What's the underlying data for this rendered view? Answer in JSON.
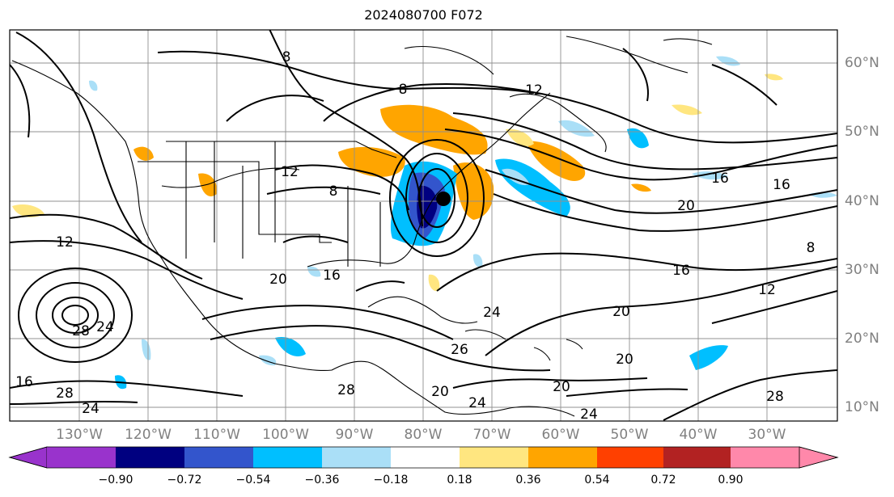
{
  "title": "2024080700 F072",
  "map": {
    "lon_labels": [
      "130°W",
      "120°W",
      "110°W",
      "100°W",
      "90°W",
      "80°W",
      "70°W",
      "60°W",
      "50°W",
      "40°W",
      "30°W"
    ],
    "lat_labels": [
      "60°N",
      "50°N",
      "40°N",
      "30°N",
      "20°N",
      "10°N"
    ],
    "contour_labels": [
      "8",
      "8",
      "8",
      "12",
      "12",
      "16",
      "16",
      "16",
      "20",
      "20",
      "20",
      "24",
      "24",
      "28",
      "28",
      "28",
      "24",
      "20",
      "16",
      "12",
      "8",
      "12",
      "16",
      "20",
      "24",
      "26",
      "28",
      "20",
      "24"
    ]
  },
  "colorbar": {
    "ticks": [
      "−0.90",
      "−0.72",
      "−0.54",
      "−0.36",
      "−0.18",
      "0.18",
      "0.36",
      "0.54",
      "0.72",
      "0.90"
    ],
    "colors": [
      "#9933cc",
      "#000080",
      "#3355cc",
      "#00bfff",
      "#aadff7",
      "#ffffff",
      "#ffe680",
      "#ffa500",
      "#ff4000",
      "#b22222",
      "#ff88aa"
    ]
  }
}
